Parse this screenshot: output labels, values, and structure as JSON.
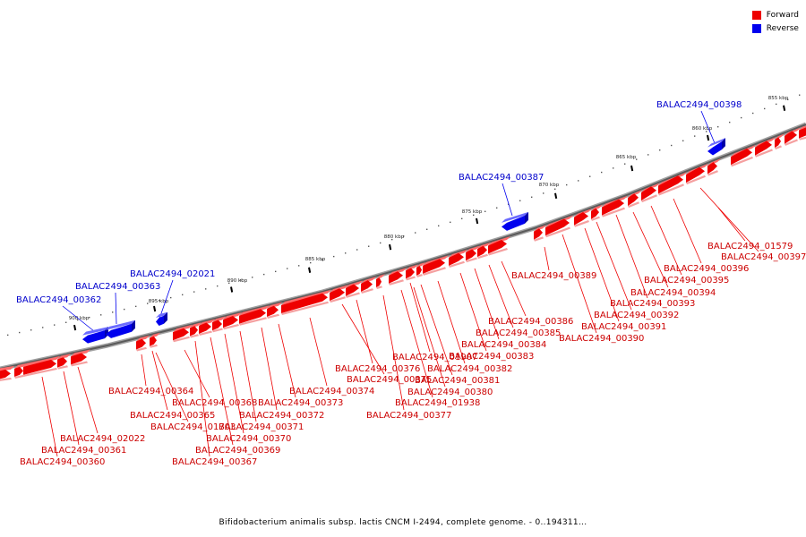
{
  "legend": {
    "forward": {
      "label": "Forward",
      "color": "#ee0000"
    },
    "reverse": {
      "label": "Reverse",
      "color": "#0000ee"
    }
  },
  "caption": "Bifidobacterium animalis subsp. lactis CNCM I-2494, complete genome. - 0..194311...",
  "scale_labels": [
    "855 kbp",
    "860 kbp",
    "865 kbp",
    "870 kbp",
    "875 kbp",
    "880 kbp",
    "885 kbp",
    "890 kbp",
    "895 kbp",
    "900 kbp"
  ],
  "reverse_genes": [
    "BALAC2494_00398",
    "BALAC2494_00387",
    "BALAC2494_02021",
    "BALAC2494_00363",
    "BALAC2494_00362"
  ],
  "forward_genes": [
    "BALAC2494_01579",
    "BALAC2494_00397",
    "BALAC2494_00396",
    "BALAC2494_00395",
    "BALAC2494_00394",
    "BALAC2494_00393",
    "BALAC2494_00392",
    "BALAC2494_00391",
    "BALAC2494_00390",
    "BALAC2494_00389",
    "BALAC2494_00386",
    "BALAC2494_00385",
    "BALAC2494_00384",
    "BALAC2494_00383",
    "BALAC2494_01907",
    "BALAC2494_00382",
    "BALAC2494_00381",
    "BALAC2494_00380",
    "BALAC2494_01938",
    "BALAC2494_00377",
    "BALAC2494_00376",
    "BALAC2494_00375",
    "BALAC2494_00374",
    "BALAC2494_00373",
    "BALAC2494_00372",
    "BALAC2494_00371",
    "BALAC2494_00370",
    "BALAC2494_00369",
    "BALAC2494_00367",
    "BALAC2494_00368",
    "BALAC2494_00365",
    "BALAC2494_01703",
    "BALAC2494_00364",
    "BALAC2494_02022",
    "BALAC2494_00361",
    "BALAC2494_00360"
  ]
}
